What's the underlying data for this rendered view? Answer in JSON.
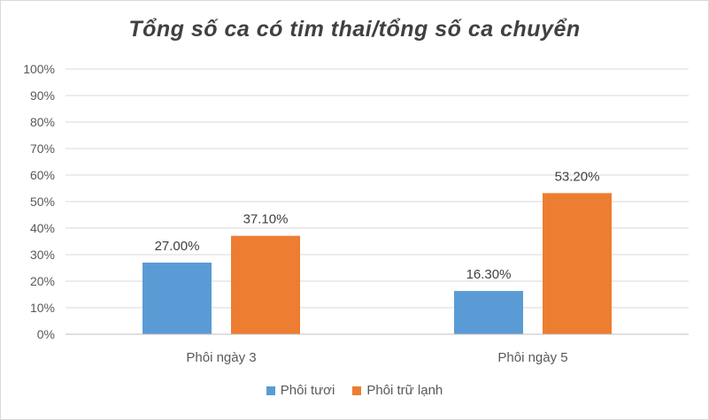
{
  "chart_data": {
    "type": "bar",
    "title": "Tổng số ca có tim thai/tổng số ca chuyển",
    "xlabel": "",
    "ylabel": "",
    "categories": [
      "Phôi ngày 3",
      "Phôi ngày 5"
    ],
    "series": [
      {
        "name": "Phôi tươi",
        "values": [
          27.0,
          16.3
        ],
        "labels": [
          "27.00%",
          "16.30%"
        ],
        "color": "#5b9bd5"
      },
      {
        "name": "Phôi trữ lạnh",
        "values": [
          37.1,
          53.2
        ],
        "labels": [
          "37.10%",
          "53.20%"
        ],
        "color": "#ed7d31"
      }
    ],
    "ylim": [
      0,
      100
    ],
    "yticks": [
      "0%",
      "10%",
      "20%",
      "30%",
      "40%",
      "50%",
      "60%",
      "70%",
      "80%",
      "90%",
      "100%"
    ],
    "grid": true,
    "legend_position": "bottom"
  }
}
